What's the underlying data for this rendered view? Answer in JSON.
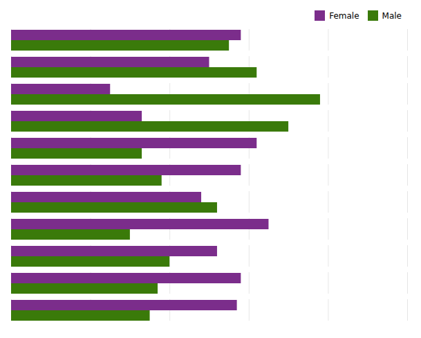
{
  "chart_data": {
    "type": "bar",
    "orientation": "horizontal",
    "categories": [
      null,
      null,
      null,
      null,
      null,
      null,
      null,
      null,
      null,
      null,
      null
    ],
    "series": [
      {
        "name": "Female",
        "color": "#7B2D8B",
        "values": [
          58,
          50,
          25,
          33,
          62,
          58,
          48,
          65,
          52,
          58,
          57
        ]
      },
      {
        "name": "Male",
        "color": "#3A7A0A",
        "values": [
          55,
          62,
          78,
          70,
          33,
          38,
          52,
          30,
          40,
          37,
          35
        ]
      }
    ],
    "xlim": [
      0,
      100
    ],
    "xticks": [
      0,
      20,
      40,
      60,
      80,
      100
    ],
    "grid": true,
    "legend": "upper right",
    "tick_labels": false
  }
}
